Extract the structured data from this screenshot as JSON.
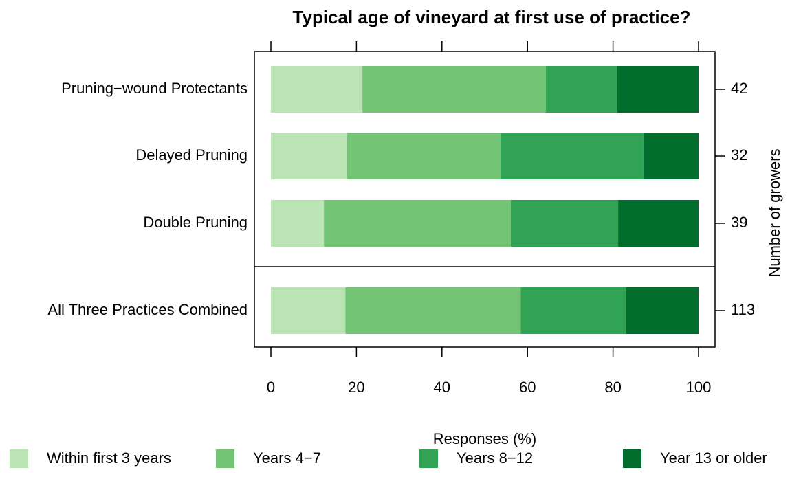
{
  "chart_data": {
    "type": "stacked-barh",
    "title": "Typical age of vineyard at first use of practice?",
    "xlabel": "Responses (%)",
    "y2label": "Number of growers",
    "categories": [
      "Pruning−wound Protectants",
      "Delayed Pruning",
      "Double Pruning",
      "All Three Practices Combined"
    ],
    "n": [
      42,
      32,
      39,
      113
    ],
    "series": [
      {
        "name": "Within first 3 years",
        "color": "#bae4b3",
        "values": [
          21.4,
          17.8,
          12.4,
          17.4
        ]
      },
      {
        "name": "Years 4−7",
        "color": "#74c476",
        "values": [
          42.9,
          35.9,
          43.7,
          41.0
        ]
      },
      {
        "name": "Years 8−12",
        "color": "#31a354",
        "values": [
          16.7,
          33.4,
          25.1,
          24.7
        ]
      },
      {
        "name": "Year 13 or older",
        "color": "#006d2c",
        "values": [
          19.0,
          12.9,
          18.8,
          16.9
        ]
      }
    ],
    "xlim": [
      0,
      100
    ],
    "xticks": [
      0,
      20,
      40,
      60,
      80,
      100
    ]
  }
}
